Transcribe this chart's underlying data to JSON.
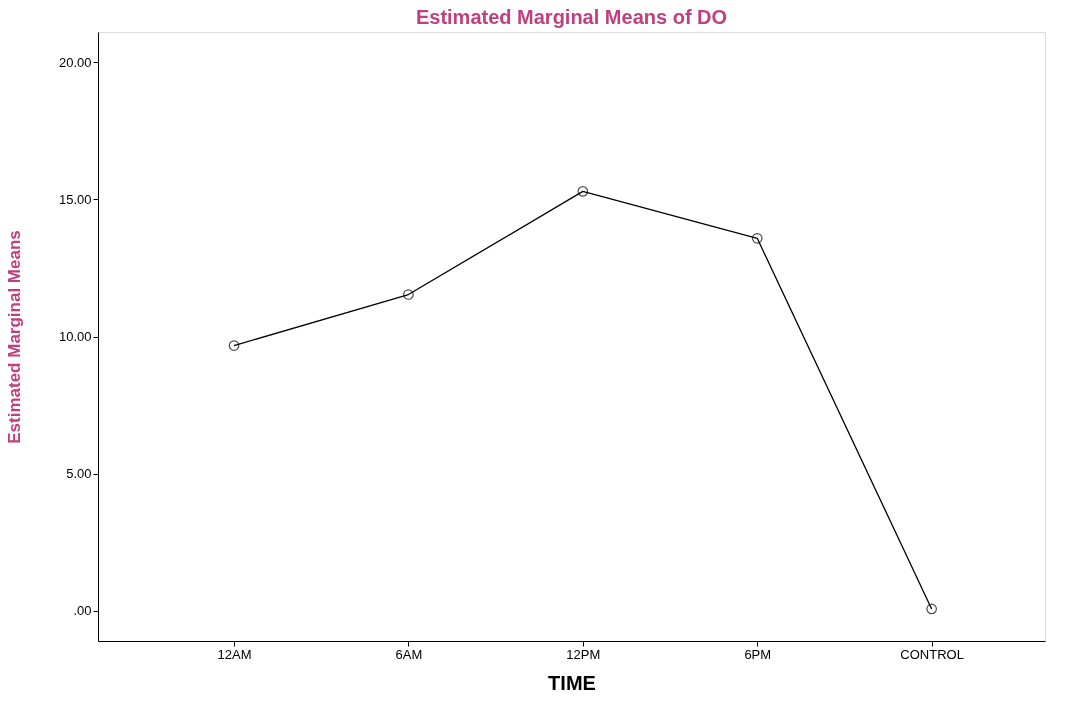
{
  "chart_data": {
    "type": "line",
    "title": "Estimated Marginal Means of DO",
    "xlabel": "TIME",
    "ylabel": "Estimated Marginal Means",
    "categories": [
      "12AM",
      "6AM",
      "12PM",
      "6PM",
      "CONTROL"
    ],
    "series": [
      {
        "color": "#000000",
        "values": [
          9.67,
          11.53,
          15.29,
          13.58,
          0.07
        ]
      }
    ],
    "ylim": [
      -1.1,
      21.1
    ],
    "yticks": [
      {
        "value": 0,
        "label": ".00"
      },
      {
        "value": 5,
        "label": "5.00"
      },
      {
        "value": 10,
        "label": "10.00"
      },
      {
        "value": 15,
        "label": "15.00"
      },
      {
        "value": 20,
        "label": "20.00"
      }
    ],
    "marker": "circle",
    "line_style": "solid",
    "grid": false,
    "legend": false
  }
}
